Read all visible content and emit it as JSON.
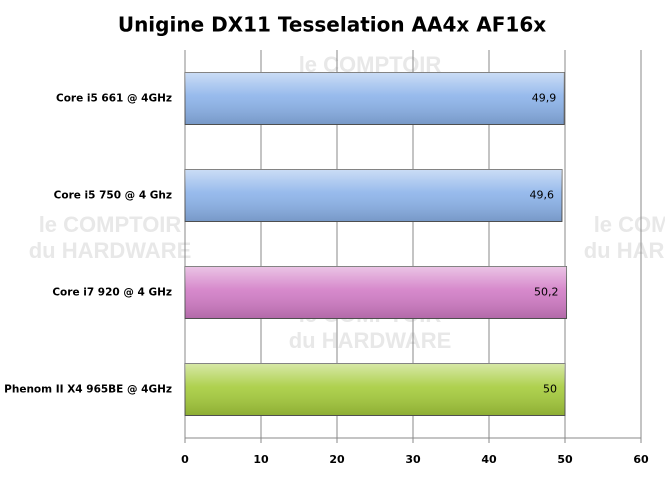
{
  "chart_data": {
    "type": "hbar",
    "title": "Unigine DX11  Tesselation AA4x AF16x",
    "categories": [
      "Core i5 661 @ 4GHz",
      "Core i5 750 @ 4 Ghz",
      "Core i7 920 @ 4 GHz",
      "Phenom II X4 965BE @ 4GHz"
    ],
    "values": [
      49.9,
      49.6,
      50.2,
      50
    ],
    "value_labels": [
      "49,9",
      "49,6",
      "50,2",
      "50"
    ],
    "colors": [
      "#8cb3ea",
      "#8cb3ea",
      "#d27cc6",
      "#a6cc3c"
    ],
    "xlim": [
      0,
      60
    ],
    "xticks": [
      0,
      10,
      20,
      30,
      40,
      50,
      60
    ],
    "grid": true,
    "watermark_top": "le COMPTOIR",
    "watermark_bottom": "du HARDWARE"
  }
}
